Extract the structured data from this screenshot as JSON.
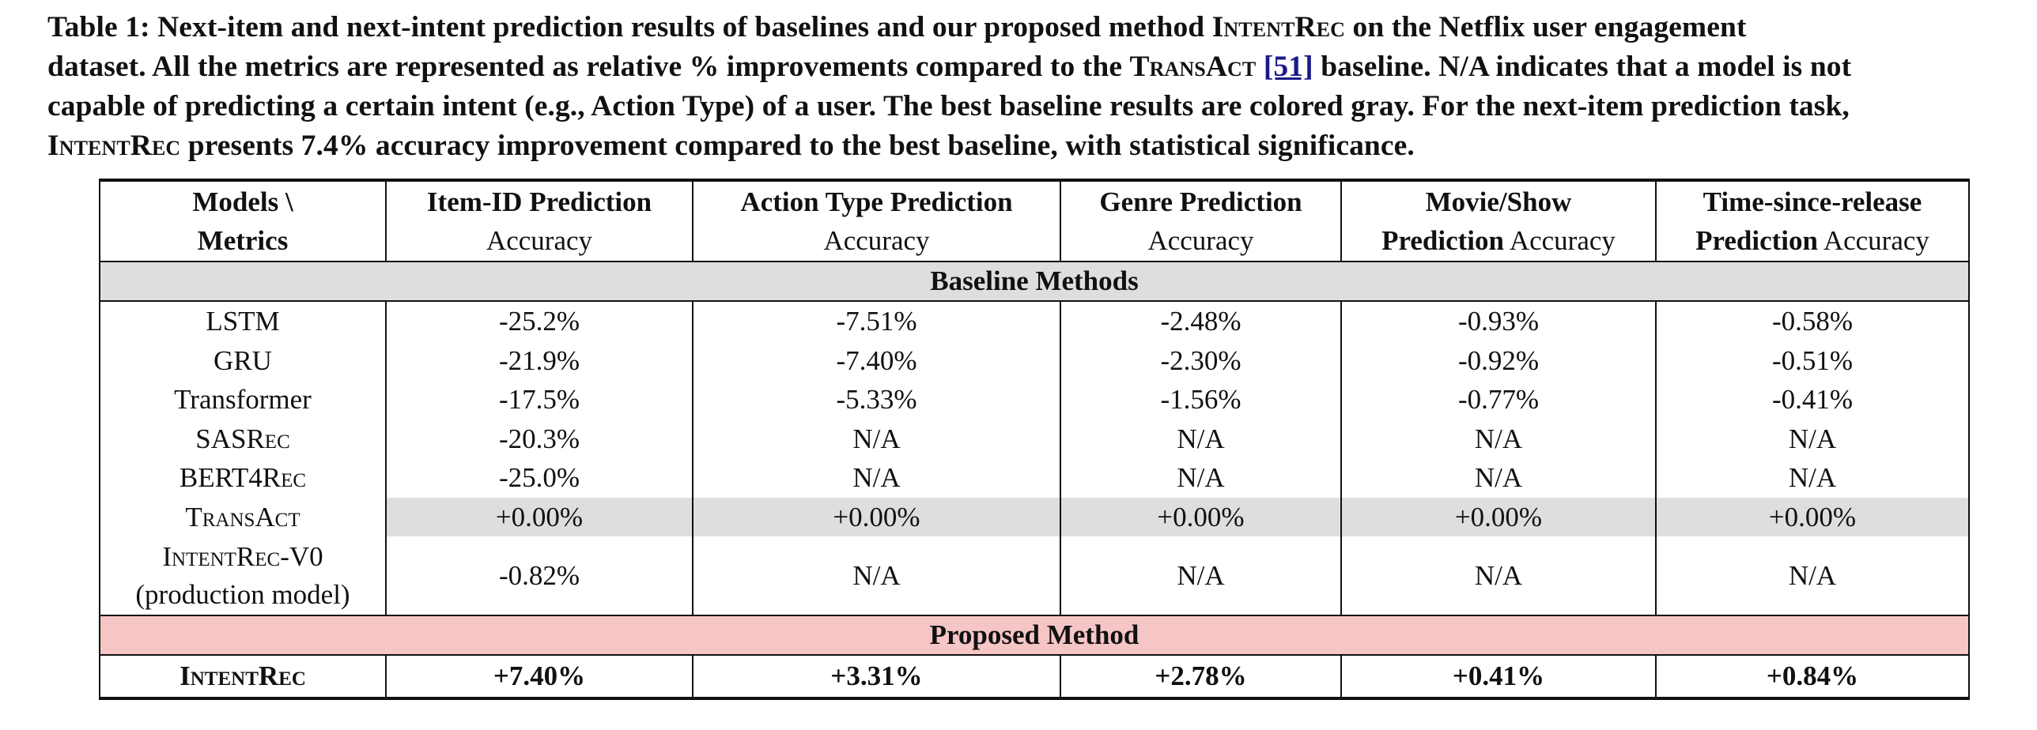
{
  "caption": {
    "lines": [
      [
        {
          "t": "Table 1: Next-item and next-intent prediction results of baselines and our proposed method "
        },
        {
          "t": "IntentRec",
          "sc": true
        },
        {
          "t": " on the Netflix user engagement"
        }
      ],
      [
        {
          "t": "dataset. All the metrics are represented as relative % improvements compared to the "
        },
        {
          "t": "TransAct",
          "sc": true
        },
        {
          "t": " "
        },
        {
          "t": "[51]",
          "ref": true
        },
        {
          "t": " baseline. N/A indicates that a model is not"
        }
      ],
      [
        {
          "t": "capable of predicting a certain intent (e.g., Action Type) of a user. The best baseline results are colored gray. For the next-item prediction task,"
        }
      ],
      [
        {
          "t": "IntentRec",
          "sc": true
        },
        {
          "t": " presents 7.4% accuracy improvement compared to the best baseline, with statistical significance."
        }
      ]
    ]
  },
  "table": {
    "headers": [
      {
        "bold": "Models \\",
        "bold2": "Metrics",
        "normal": ""
      },
      {
        "bold": "Item-ID Prediction",
        "bold2": "",
        "normal": "Accuracy"
      },
      {
        "bold": "Action Type Prediction",
        "bold2": "",
        "normal": "Accuracy"
      },
      {
        "bold": "Genre Prediction",
        "bold2": "",
        "normal": "Accuracy"
      },
      {
        "bold": "Movie/Show",
        "bold2": "Prediction",
        "normal": "Accuracy"
      },
      {
        "bold": "Time-since-release",
        "bold2": "Prediction",
        "normal": "Accuracy"
      }
    ],
    "baseline_section": "Baseline Methods",
    "baseline_rows": [
      {
        "model": "LSTM",
        "sc": false,
        "sub": "",
        "values": [
          "-25.2%",
          "-7.51%",
          "-2.48%",
          "-0.93%",
          "-0.58%"
        ]
      },
      {
        "model": "GRU",
        "sc": false,
        "sub": "",
        "values": [
          "-21.9%",
          "-7.40%",
          "-2.30%",
          "-0.92%",
          "-0.51%"
        ]
      },
      {
        "model": "Transformer",
        "sc": false,
        "sub": "",
        "values": [
          "-17.5%",
          "-5.33%",
          "-1.56%",
          "-0.77%",
          "-0.41%"
        ]
      },
      {
        "model": "SASRec",
        "sc": true,
        "sub": "",
        "values": [
          "-20.3%",
          "N/A",
          "N/A",
          "N/A",
          "N/A"
        ]
      },
      {
        "model": "BERT4Rec",
        "sc": true,
        "sub": "",
        "values": [
          "-25.0%",
          "N/A",
          "N/A",
          "N/A",
          "N/A"
        ]
      },
      {
        "model": "TransAct",
        "sc": true,
        "sub": "",
        "best": true,
        "values": [
          "+0.00%",
          "+0.00%",
          "+0.00%",
          "+0.00%",
          "+0.00%"
        ]
      },
      {
        "model": "IntentRec-V0",
        "sc": true,
        "sub": "(production model)",
        "values": [
          "-0.82%",
          "N/A",
          "N/A",
          "N/A",
          "N/A"
        ]
      }
    ],
    "proposed_section": "Proposed Method",
    "proposed_row": {
      "model": "IntentRec",
      "sc": true,
      "values": [
        "+7.40%",
        "+3.31%",
        "+2.78%",
        "+0.41%",
        "+0.84%"
      ]
    }
  },
  "colors": {
    "best_baseline": "#dedede",
    "proposed_band": "#f6c5c5",
    "reference_link": "#1a1a8a"
  }
}
